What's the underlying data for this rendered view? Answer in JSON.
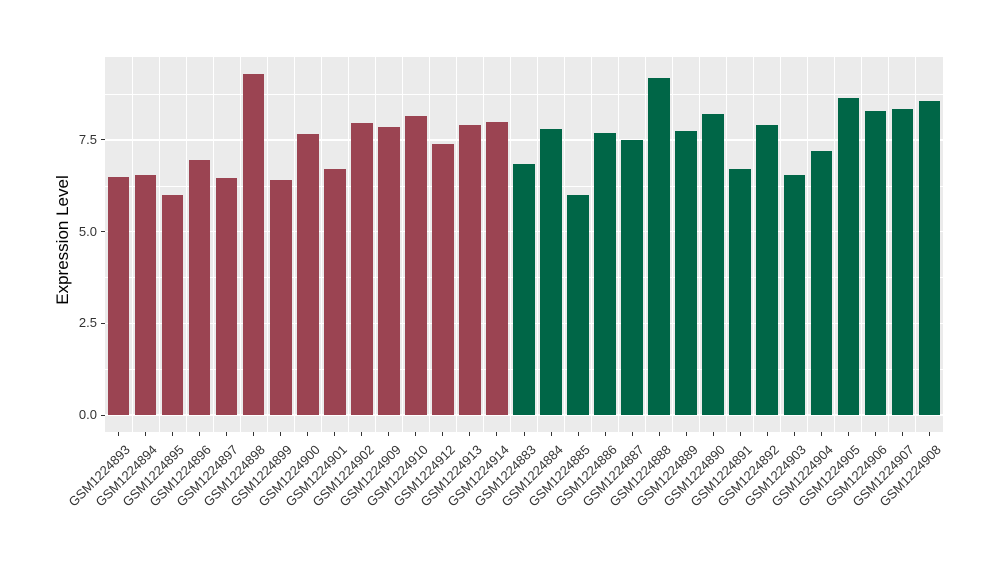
{
  "chart_data": {
    "type": "bar",
    "title": "",
    "xlabel": "",
    "ylabel": "Expression Level",
    "ylim": [
      0,
      9.77
    ],
    "grid": "white major+minor horizontal lines and vertical lines between categories on grey panel",
    "legend_position": "none",
    "yticks": [
      {
        "value": 0.0,
        "label": "0.0"
      },
      {
        "value": 2.5,
        "label": "2.5"
      },
      {
        "value": 5.0,
        "label": "5.0"
      },
      {
        "value": 7.5,
        "label": "7.5"
      }
    ],
    "minor_yticks": [
      1.25,
      3.75,
      6.25,
      8.75
    ],
    "group_colors": {
      "maroon": "#9B4452",
      "green": "#006647"
    },
    "bars": [
      {
        "label": "GSM1224893",
        "value": 6.5,
        "group": "maroon"
      },
      {
        "label": "GSM1224894",
        "value": 6.55,
        "group": "maroon"
      },
      {
        "label": "GSM1224895",
        "value": 6.0,
        "group": "maroon"
      },
      {
        "label": "GSM1224896",
        "value": 6.95,
        "group": "maroon"
      },
      {
        "label": "GSM1224897",
        "value": 6.45,
        "group": "maroon"
      },
      {
        "label": "GSM1224898",
        "value": 9.3,
        "group": "maroon"
      },
      {
        "label": "GSM1224899",
        "value": 6.4,
        "group": "maroon"
      },
      {
        "label": "GSM1224900",
        "value": 7.65,
        "group": "maroon"
      },
      {
        "label": "GSM1224901",
        "value": 6.7,
        "group": "maroon"
      },
      {
        "label": "GSM1224902",
        "value": 7.95,
        "group": "maroon"
      },
      {
        "label": "GSM1224909",
        "value": 7.85,
        "group": "maroon"
      },
      {
        "label": "GSM1224910",
        "value": 8.15,
        "group": "maroon"
      },
      {
        "label": "GSM1224912",
        "value": 7.4,
        "group": "maroon"
      },
      {
        "label": "GSM1224913",
        "value": 7.9,
        "group": "maroon"
      },
      {
        "label": "GSM1224914",
        "value": 8.0,
        "group": "maroon"
      },
      {
        "label": "GSM1224883",
        "value": 6.85,
        "group": "green"
      },
      {
        "label": "GSM1224884",
        "value": 7.8,
        "group": "green"
      },
      {
        "label": "GSM1224885",
        "value": 6.0,
        "group": "green"
      },
      {
        "label": "GSM1224886",
        "value": 7.7,
        "group": "green"
      },
      {
        "label": "GSM1224887",
        "value": 7.5,
        "group": "green"
      },
      {
        "label": "GSM1224888",
        "value": 9.2,
        "group": "green"
      },
      {
        "label": "GSM1224889",
        "value": 7.75,
        "group": "green"
      },
      {
        "label": "GSM1224890",
        "value": 8.2,
        "group": "green"
      },
      {
        "label": "GSM1224891",
        "value": 6.7,
        "group": "green"
      },
      {
        "label": "GSM1224892",
        "value": 7.9,
        "group": "green"
      },
      {
        "label": "GSM1224903",
        "value": 6.55,
        "group": "green"
      },
      {
        "label": "GSM1224904",
        "value": 7.2,
        "group": "green"
      },
      {
        "label": "GSM1224905",
        "value": 8.65,
        "group": "green"
      },
      {
        "label": "GSM1224906",
        "value": 8.3,
        "group": "green"
      },
      {
        "label": "GSM1224907",
        "value": 8.35,
        "group": "green"
      },
      {
        "label": "GSM1224908",
        "value": 8.55,
        "group": "green"
      }
    ],
    "panel_background": "#EBEBEB",
    "gridline_color": "#FFFFFF",
    "axis_text_color": "#333333"
  }
}
